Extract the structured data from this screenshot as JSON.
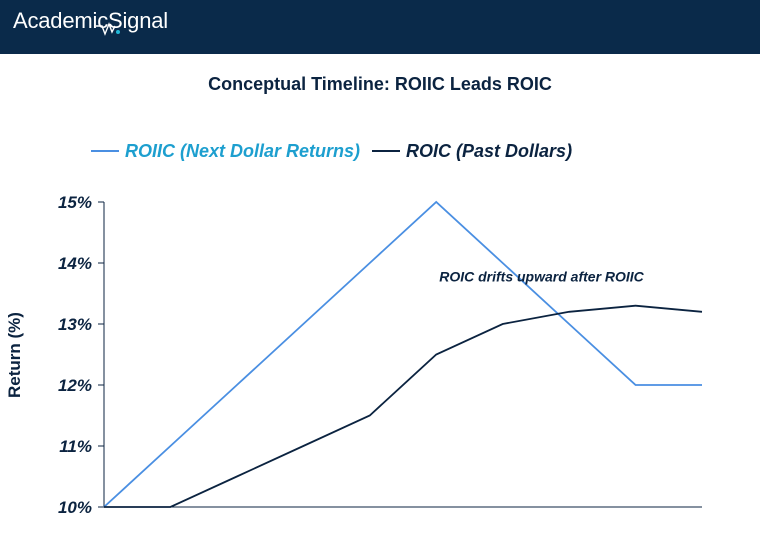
{
  "header": {
    "logo_text": "AcademicSignal"
  },
  "colors": {
    "header_bg": "#0a2a4a",
    "roiic": "#4a8fe2",
    "roic": "#0b2340",
    "roiic_label": "#1d9fcf"
  },
  "chart_data": {
    "type": "line",
    "title": "Conceptual Timeline: ROIIC Leads ROIC",
    "xlabel": "",
    "ylabel": "Return (%)",
    "x": [
      0,
      1,
      2,
      3,
      4,
      5,
      6,
      7,
      8,
      9
    ],
    "ylim": [
      10,
      15
    ],
    "yticks": [
      "10%",
      "11%",
      "12%",
      "13%",
      "14%",
      "15%"
    ],
    "ytick_values": [
      10,
      11,
      12,
      13,
      14,
      15
    ],
    "legend_position": "top",
    "series": [
      {
        "name": "ROIIC (Next Dollar Returns)",
        "values": [
          10,
          11,
          12,
          13,
          14,
          15,
          14,
          13,
          12,
          12
        ],
        "color": "#4a8fe2"
      },
      {
        "name": "ROIC (Past Dollars)",
        "values": [
          10,
          10,
          10.5,
          11,
          11.5,
          12.5,
          13,
          13.2,
          13.3,
          13.2
        ],
        "color": "#0b2340"
      }
    ],
    "annotations": [
      {
        "text": "ROIC drifts upward after ROIIC",
        "x": 5.0,
        "y": 13.5
      }
    ]
  }
}
